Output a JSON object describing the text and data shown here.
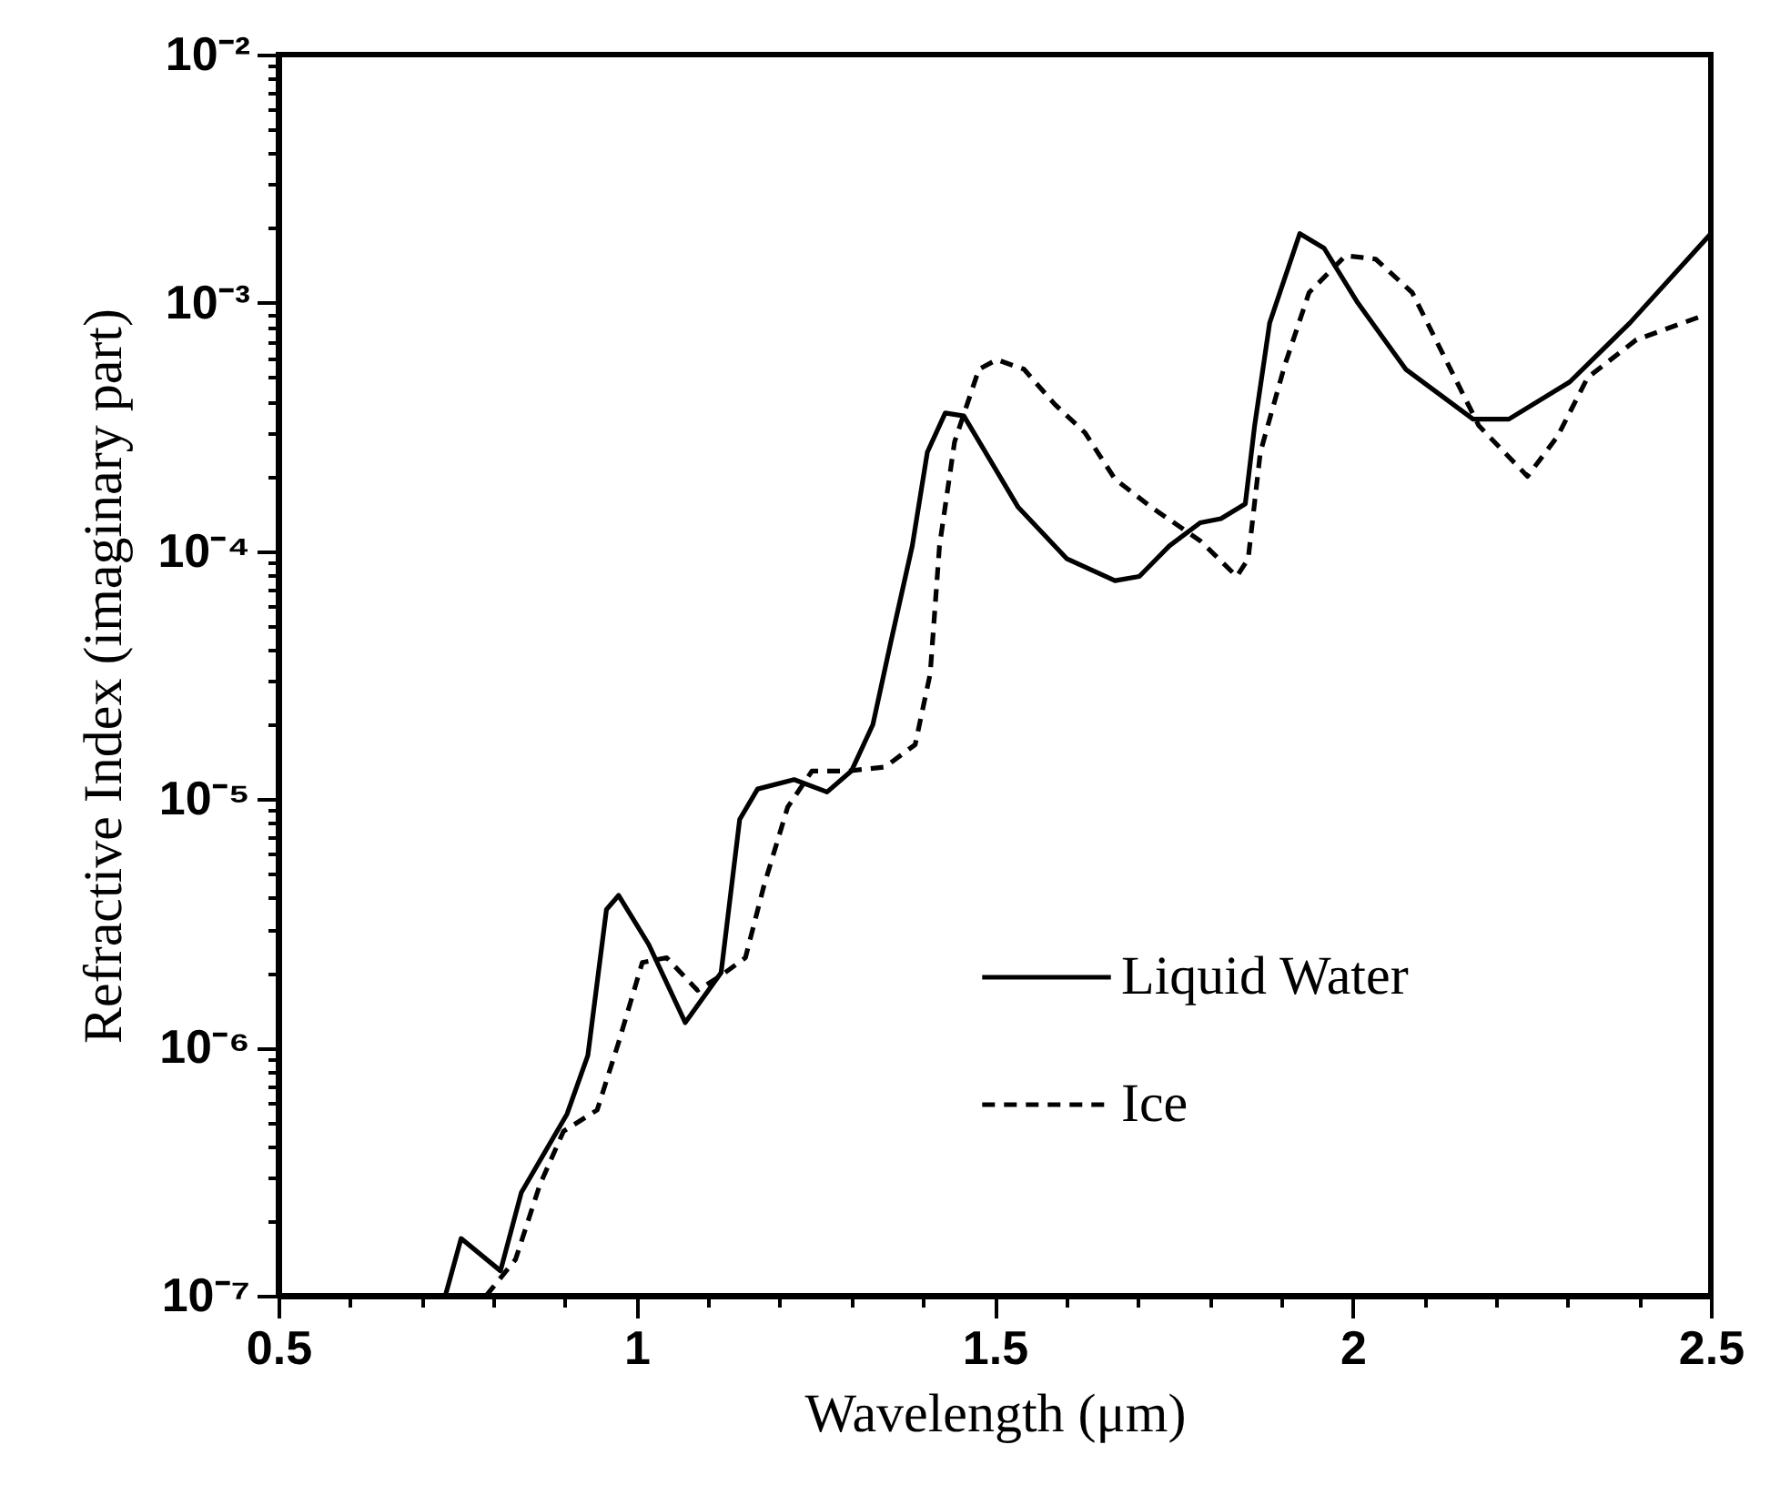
{
  "chart_data": {
    "type": "line",
    "xlabel": "Wavelength (μm)",
    "ylabel": "Refractive Index (imaginary part)",
    "log": "y",
    "grid": false,
    "legend": "bottom right",
    "marker": "none",
    "xlim": [
      0.5,
      2.5
    ],
    "ylim": [
      1e-07,
      0.01
    ],
    "xticks": [
      0.5,
      {
        "value": 0.6,
        "label": null
      },
      {
        "value": 0.7,
        "label": null
      },
      {
        "value": 0.8,
        "label": null
      },
      {
        "value": 0.9,
        "label": null
      },
      1,
      {
        "value": 1.1,
        "label": null
      },
      {
        "value": 1.2,
        "label": null
      },
      {
        "value": 1.3,
        "label": null
      },
      {
        "value": 1.4,
        "label": null
      },
      1.5,
      {
        "value": 1.6,
        "label": null
      },
      {
        "value": 1.7,
        "label": null
      },
      {
        "value": 1.8,
        "label": null
      },
      {
        "value": 1.9,
        "label": null
      },
      2,
      {
        "value": 2.1,
        "label": null
      },
      {
        "value": 2.2,
        "label": null
      },
      {
        "value": 2.3,
        "label": null
      },
      {
        "value": 2.4,
        "label": null
      },
      2.5
    ],
    "yticks": [
      {
        "value": 1e-07,
        "label": "10⁻⁷"
      },
      {
        "value": 2e-07,
        "label": null
      },
      {
        "value": 3e-07,
        "label": null
      },
      {
        "value": 4e-07,
        "label": null
      },
      {
        "value": 5e-07,
        "label": null
      },
      {
        "value": 6e-07,
        "label": null
      },
      {
        "value": 7e-07,
        "label": null
      },
      {
        "value": 8e-07,
        "label": null
      },
      {
        "value": 9e-07,
        "label": null
      },
      {
        "value": 1e-06,
        "label": "10⁻⁶"
      },
      {
        "value": 2e-06,
        "label": null
      },
      {
        "value": 3e-06,
        "label": null
      },
      {
        "value": 4e-06,
        "label": null
      },
      {
        "value": 5e-06,
        "label": null
      },
      {
        "value": 6e-06,
        "label": null
      },
      {
        "value": 7e-06,
        "label": null
      },
      {
        "value": 8e-06,
        "label": null
      },
      {
        "value": 9e-06,
        "label": null
      },
      {
        "value": 1e-05,
        "label": "10⁻⁵"
      },
      {
        "value": 2e-05,
        "label": null
      },
      {
        "value": 3e-05,
        "label": null
      },
      {
        "value": 4e-05,
        "label": null
      },
      {
        "value": 5e-05,
        "label": null
      },
      {
        "value": 6e-05,
        "label": null
      },
      {
        "value": 7e-05,
        "label": null
      },
      {
        "value": 8e-05,
        "label": null
      },
      {
        "value": 9e-05,
        "label": null
      },
      {
        "value": 0.0001,
        "label": "10⁻⁴"
      },
      {
        "value": 0.0002,
        "label": null
      },
      {
        "value": 0.0003,
        "label": null
      },
      {
        "value": 0.0004,
        "label": null
      },
      {
        "value": 0.0005,
        "label": null
      },
      {
        "value": 0.0006,
        "label": null
      },
      {
        "value": 0.0007,
        "label": null
      },
      {
        "value": 0.0008,
        "label": null
      },
      {
        "value": 0.0009,
        "label": null
      },
      {
        "value": 0.001,
        "label": "10⁻³"
      },
      {
        "value": 0.002,
        "label": null
      },
      {
        "value": 0.003,
        "label": null
      },
      {
        "value": 0.004,
        "label": null
      },
      {
        "value": 0.005,
        "label": null
      },
      {
        "value": 0.006,
        "label": null
      },
      {
        "value": 0.007,
        "label": null
      },
      {
        "value": 0.008,
        "label": null
      },
      {
        "value": 0.009,
        "label": null
      },
      {
        "value": 0.01,
        "label": "10⁻²"
      }
    ],
    "series": [
      {
        "name": "Liquid Water",
        "color": "#000000",
        "line_style": "solid",
        "x": [
          0.733,
          0.755,
          0.81,
          0.839,
          0.903,
          0.932,
          0.958,
          0.975,
          1.017,
          1.068,
          1.118,
          1.144,
          1.169,
          1.22,
          1.266,
          1.3,
          1.33,
          1.355,
          1.385,
          1.406,
          1.431,
          1.457,
          1.533,
          1.601,
          1.668,
          1.702,
          1.744,
          1.787,
          1.816,
          1.85,
          1.863,
          1.884,
          1.926,
          1.96,
          2.007,
          2.074,
          2.168,
          2.218,
          2.303,
          2.387,
          2.5
        ],
        "values": [
          1e-07,
          1.7e-07,
          1.26e-07,
          2.6e-07,
          5.4e-07,
          9.3e-07,
          3.6e-06,
          4.1e-06,
          2.6e-06,
          1.26e-06,
          2e-06,
          8.3e-06,
          1.1e-05,
          1.2e-05,
          1.07e-05,
          1.3e-05,
          2e-05,
          4.3e-05,
          0.000105,
          0.00025,
          0.00036,
          0.00035,
          0.00015,
          9.3e-05,
          7.6e-05,
          7.9e-05,
          0.000105,
          0.00013,
          0.000135,
          0.000155,
          0.00032,
          0.00083,
          0.0019,
          0.00166,
          0.001,
          0.00054,
          0.00034,
          0.00034,
          0.00048,
          0.00083,
          0.0019
        ]
      },
      {
        "name": "Ice",
        "color": "#000000",
        "line_style": "dashed",
        "x": [
          0.79,
          0.831,
          0.865,
          0.898,
          0.945,
          0.975,
          1.008,
          1.042,
          1.085,
          1.118,
          1.152,
          1.178,
          1.211,
          1.245,
          1.296,
          1.347,
          1.389,
          1.41,
          1.423,
          1.444,
          1.478,
          1.503,
          1.541,
          1.584,
          1.626,
          1.668,
          1.719,
          1.787,
          1.838,
          1.854,
          1.871,
          1.905,
          1.939,
          1.99,
          2.032,
          2.083,
          2.125,
          2.176,
          2.244,
          2.286,
          2.328,
          2.396,
          2.49
        ],
        "values": [
          1e-07,
          1.4e-07,
          2.8e-07,
          4.6e-07,
          5.6e-07,
          1.05e-06,
          2.2e-06,
          2.3e-06,
          1.7e-06,
          1.95e-06,
          2.3e-06,
          4.5e-06,
          9.3e-06,
          1.3e-05,
          1.3e-05,
          1.35e-05,
          1.66e-05,
          3.2e-05,
          0.000105,
          0.000275,
          0.00054,
          0.00059,
          0.00054,
          0.00039,
          0.0003,
          0.000195,
          0.00015,
          0.00011,
          7.9e-05,
          9.3e-05,
          0.00025,
          0.00056,
          0.0011,
          0.00155,
          0.0015,
          0.0011,
          0.00063,
          0.00032,
          0.0002,
          0.00029,
          0.0005,
          0.00071,
          0.00089
        ]
      }
    ]
  }
}
